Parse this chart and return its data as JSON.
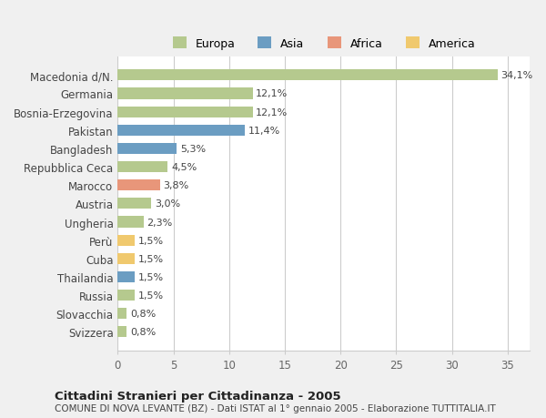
{
  "categories": [
    "Macedonia d/N.",
    "Germania",
    "Bosnia-Erzegovina",
    "Pakistan",
    "Bangladesh",
    "Repubblica Ceca",
    "Marocco",
    "Austria",
    "Ungheria",
    "Perù",
    "Cuba",
    "Thailandia",
    "Russia",
    "Slovacchia",
    "Svizzera"
  ],
  "values": [
    34.1,
    12.1,
    12.1,
    11.4,
    5.3,
    4.5,
    3.8,
    3.0,
    2.3,
    1.5,
    1.5,
    1.5,
    1.5,
    0.8,
    0.8
  ],
  "labels": [
    "34,1%",
    "12,1%",
    "12,1%",
    "11,4%",
    "5,3%",
    "4,5%",
    "3,8%",
    "3,0%",
    "2,3%",
    "1,5%",
    "1,5%",
    "1,5%",
    "1,5%",
    "0,8%",
    "0,8%"
  ],
  "continent": [
    "Europa",
    "Europa",
    "Europa",
    "Asia",
    "Asia",
    "Europa",
    "Africa",
    "Europa",
    "Europa",
    "America",
    "America",
    "Asia",
    "Europa",
    "Europa",
    "Europa"
  ],
  "colors": {
    "Europa": "#b5c98e",
    "Asia": "#6b9dc2",
    "Africa": "#e8967a",
    "America": "#f0c96e"
  },
  "legend_order": [
    "Europa",
    "Asia",
    "Africa",
    "America"
  ],
  "title1": "Cittadini Stranieri per Cittadinanza - 2005",
  "title2": "COMUNE DI NOVA LEVANTE (BZ) - Dati ISTAT al 1° gennaio 2005 - Elaborazione TUTTITALIA.IT",
  "xlim": [
    0,
    37
  ],
  "xticks": [
    0,
    5,
    10,
    15,
    20,
    25,
    30,
    35
  ],
  "background_color": "#f0f0f0",
  "plot_bg_color": "#ffffff"
}
